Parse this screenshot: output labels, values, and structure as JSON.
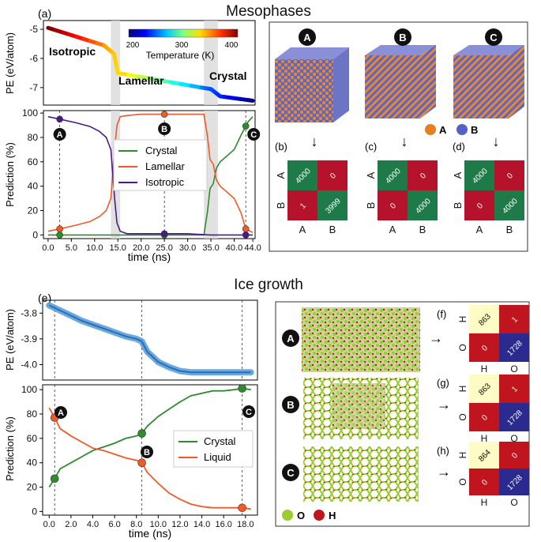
{
  "sections": {
    "top_title": "Mesophases",
    "bottom_title": "Ice growth"
  },
  "panel_labels": {
    "a": "(a)",
    "b": "(b)",
    "c": "(c)",
    "d": "(d)",
    "e": "(e)",
    "f": "(f)",
    "g": "(g)",
    "h": "(h)"
  },
  "structures_top": {
    "markers": [
      "A",
      "B",
      "C"
    ],
    "legend": [
      {
        "symbol": "A",
        "color": "#e67e22"
      },
      {
        "symbol": "B",
        "color": "#5560c8"
      }
    ],
    "arrow_glyph": "↓"
  },
  "confusion_top": {
    "row_labels": [
      "A",
      "B"
    ],
    "col_labels": [
      "A",
      "B"
    ],
    "matrices": [
      {
        "id": "b",
        "cells": [
          [
            "4000",
            "0"
          ],
          [
            "1",
            "3999"
          ]
        ]
      },
      {
        "id": "c",
        "cells": [
          [
            "4000",
            "0"
          ],
          [
            "0",
            "4000"
          ]
        ]
      },
      {
        "id": "d",
        "cells": [
          [
            "4000",
            "0"
          ],
          [
            "0",
            "4000"
          ]
        ]
      }
    ],
    "colors": {
      "correct": "#1f7a4a",
      "wrong": "#b5132c"
    }
  },
  "structures_bottom": {
    "markers": [
      "A",
      "B",
      "C"
    ],
    "legend": [
      {
        "symbol": "O",
        "color": "#9acd32"
      },
      {
        "symbol": "H",
        "color": "#c0151e"
      }
    ],
    "arrow_glyph": "→"
  },
  "confusion_bottom": {
    "row_labels": [
      "H",
      "O"
    ],
    "col_labels": [
      "H",
      "O"
    ],
    "matrices": [
      {
        "id": "f",
        "cells": [
          [
            "863",
            "1"
          ],
          [
            "0",
            "1728"
          ]
        ]
      },
      {
        "id": "g",
        "cells": [
          [
            "863",
            "1"
          ],
          [
            "0",
            "1728"
          ]
        ]
      },
      {
        "id": "h",
        "cells": [
          [
            "864",
            "0"
          ],
          [
            "0",
            "1728"
          ]
        ]
      }
    ],
    "colors": {
      "low": "#fcfcc4",
      "red": "#c0151e",
      "blue": "#2a2a8f"
    }
  },
  "chart_data": [
    {
      "id": "a-pe",
      "type": "line",
      "ylabel": "PE (eV/atom)",
      "ylim": [
        -7.6,
        -4.7
      ],
      "yticks": [
        "-5",
        "-6",
        "-7"
      ],
      "x": [
        0,
        12,
        14.2,
        15,
        33,
        35,
        37,
        44
      ],
      "y": [
        -4.95,
        -5.55,
        -5.85,
        -6.5,
        -7.0,
        -7.05,
        -7.3,
        -7.45
      ],
      "color_scale": {
        "label": "Temperature (K)",
        "ticks": [
          "200",
          "300",
          "400"
        ],
        "range": [
          200,
          420
        ]
      },
      "annotations": [
        "Isotropic",
        "Lamellar",
        "Crystal"
      ],
      "shaded_x": [
        [
          13.5,
          15.5
        ],
        [
          33.5,
          36.5
        ]
      ]
    },
    {
      "id": "a-pred",
      "type": "line",
      "xlabel": "time (ns)",
      "ylabel": "Prediction (%)",
      "xlim": [
        -1,
        44.5
      ],
      "ylim": [
        -3,
        102
      ],
      "xticks": [
        "0.0",
        "5.0",
        "10.0",
        "15.0",
        "20.0",
        "25.0",
        "30.0",
        "35.0",
        "40.0",
        "44.0"
      ],
      "yticks": [
        "0",
        "20",
        "40",
        "60",
        "80",
        "100"
      ],
      "series": [
        {
          "name": "Crystal",
          "color": "#2e8b2e",
          "x": [
            0,
            10,
            20,
            30,
            33.5,
            34.3,
            34.8,
            35.5,
            36.2,
            37,
            38.5,
            40,
            41.5,
            43,
            44
          ],
          "y": [
            0,
            0,
            0,
            0,
            0,
            20,
            38,
            42,
            55,
            60,
            65,
            70,
            82,
            93,
            97
          ]
        },
        {
          "name": "Lamellar",
          "color": "#f05a28",
          "x": [
            0,
            2.5,
            6,
            9,
            11,
            12.5,
            13.5,
            14.3,
            14.8,
            15.5,
            17,
            20,
            25,
            30,
            33.5,
            34.3,
            34.8,
            35.5,
            36.2,
            37,
            38.5,
            40,
            41.5,
            42.5,
            44
          ],
          "y": [
            3,
            5,
            8,
            11,
            15,
            20,
            30,
            70,
            90,
            97,
            98,
            99,
            99,
            99,
            99,
            80,
            62,
            58,
            45,
            40,
            35,
            30,
            18,
            5,
            2
          ]
        },
        {
          "name": "Isotropic",
          "color": "#4b1a8a",
          "x": [
            0,
            2.5,
            6,
            9,
            11,
            12.5,
            13.5,
            14.3,
            14.8,
            15.5,
            17,
            20,
            25,
            30,
            35,
            40,
            44
          ],
          "y": [
            97,
            95,
            92,
            89,
            85,
            80,
            70,
            30,
            10,
            3,
            1,
            1,
            1,
            1,
            0,
            0,
            0
          ]
        }
      ],
      "vlines_x": [
        2.5,
        25,
        42.5
      ],
      "markers": [
        {
          "label": "A",
          "x": 2.5
        },
        {
          "label": "B",
          "x": 25
        },
        {
          "label": "C",
          "x": 42.5
        }
      ],
      "legend": "center-right"
    },
    {
      "id": "e-pe",
      "type": "line",
      "ylabel": "PE (eV/atom)",
      "ylim": [
        -4.06,
        -3.75
      ],
      "yticks": [
        "-3.8",
        "-3.9",
        "-4.0"
      ],
      "x": [
        0,
        1,
        2,
        3,
        4,
        5,
        6,
        7,
        8,
        8.5,
        9,
        10,
        11,
        12,
        13,
        14,
        15,
        16,
        17,
        18.5
      ],
      "y": [
        -3.77,
        -3.79,
        -3.81,
        -3.83,
        -3.845,
        -3.86,
        -3.875,
        -3.89,
        -3.9,
        -3.91,
        -3.95,
        -3.99,
        -4.01,
        -4.025,
        -4.03,
        -4.03,
        -4.03,
        -4.03,
        -4.03,
        -4.03
      ],
      "vlines_x": [
        0.5,
        8.5,
        17.7
      ]
    },
    {
      "id": "e-pred",
      "type": "line",
      "xlabel": "time (ns)",
      "ylabel": "Prediction (%)",
      "xlim": [
        -0.6,
        19.1
      ],
      "ylim": [
        -3,
        104
      ],
      "xticks": [
        "0.0",
        "2.0",
        "4.0",
        "6.0",
        "8.0",
        "10.0",
        "12.0",
        "14.0",
        "16.0",
        "18.0"
      ],
      "yticks": [
        "0",
        "20",
        "40",
        "60",
        "80",
        "100"
      ],
      "series": [
        {
          "name": "Crystal",
          "color": "#2e8b2e",
          "x": [
            0,
            0.5,
            1,
            2,
            3,
            4,
            5,
            6,
            7,
            8,
            8.5,
            9,
            10,
            11,
            12,
            13,
            14,
            15,
            16,
            17,
            17.7,
            18.5
          ],
          "y": [
            20,
            27,
            35,
            40,
            45,
            50,
            53,
            56,
            60,
            62,
            64,
            70,
            78,
            84,
            90,
            95,
            97,
            99,
            99,
            100,
            101,
            100
          ]
        },
        {
          "name": "Liquid",
          "color": "#f05a28",
          "x": [
            0,
            0.5,
            1,
            2,
            3,
            4,
            5,
            6,
            7,
            8,
            8.5,
            9,
            10,
            11,
            12,
            13,
            14,
            15,
            16,
            17,
            17.7,
            18.5
          ],
          "y": [
            85,
            77,
            68,
            62,
            57,
            52,
            50,
            47,
            44,
            42,
            40,
            32,
            23,
            15,
            10,
            6,
            4,
            3,
            3,
            3,
            3,
            2
          ]
        }
      ],
      "vlines_x": [
        0.5,
        8.5,
        17.7
      ],
      "markers": [
        {
          "label": "A",
          "x": 0.5
        },
        {
          "label": "B",
          "x": 8.5
        },
        {
          "label": "C",
          "x": 17.7
        }
      ],
      "legend": "center-right"
    }
  ]
}
